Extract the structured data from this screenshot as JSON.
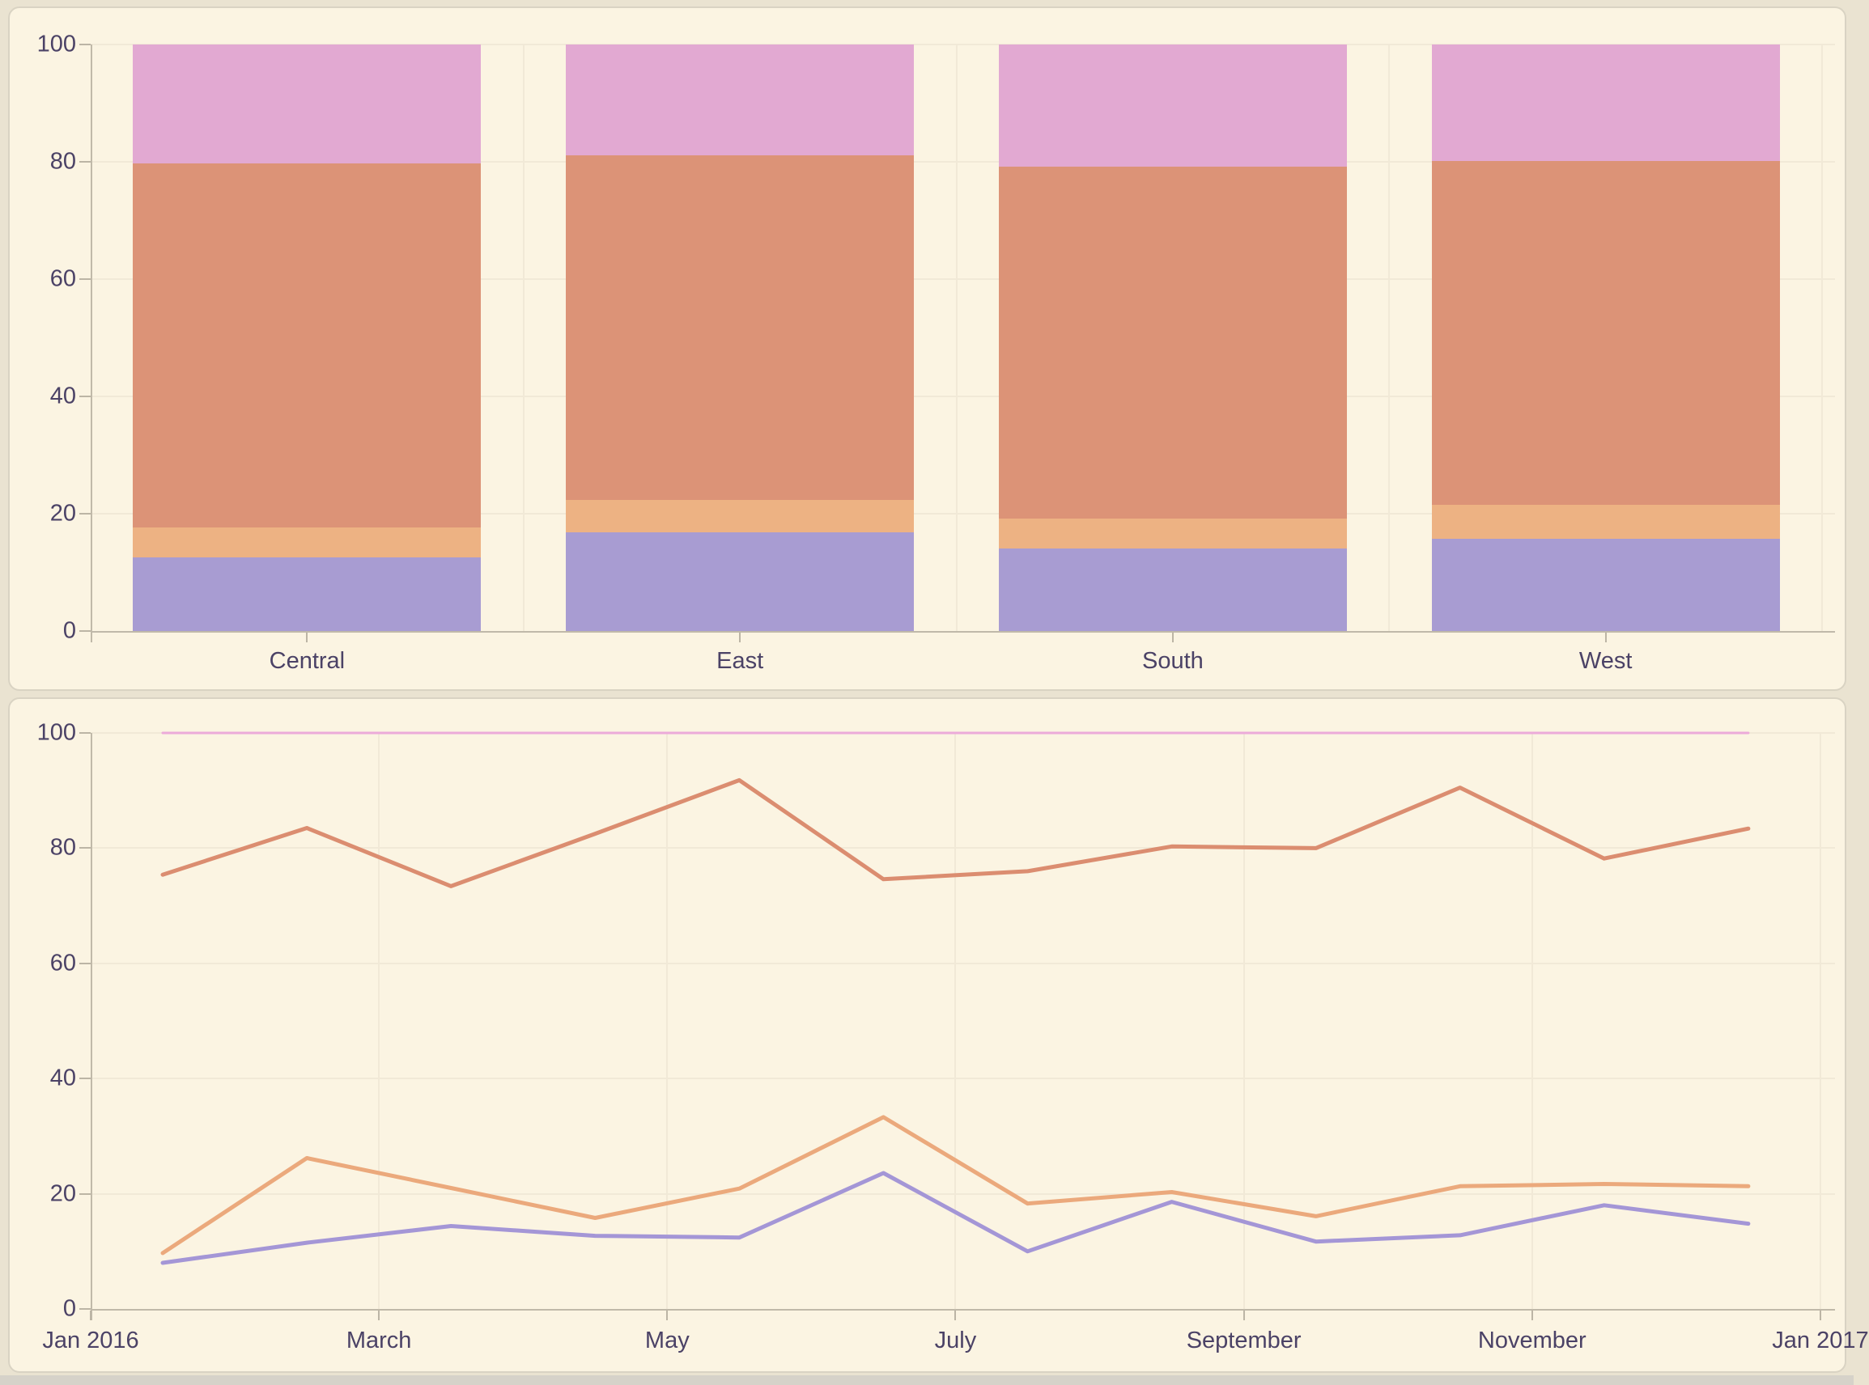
{
  "page": {
    "background": "#eae3d1",
    "panel_background": "#fbf4e2",
    "panel_border": "#d9d3c3",
    "gridline_color": "#f1e9d7",
    "axis_line_color": "#c0b9a9",
    "text_color": "#4b4266",
    "bottom_strip_color": "#d6d2c9"
  },
  "chart_data": [
    {
      "type": "bar",
      "subtype": "stacked-percent",
      "title": "",
      "categories": [
        "Central",
        "East",
        "South",
        "West"
      ],
      "series": [
        {
          "name": "purple-segment",
          "color": "#a89cd2",
          "values": [
            12.6,
            16.8,
            14.1,
            15.7
          ]
        },
        {
          "name": "orange-segment",
          "color": "#edb283",
          "values": [
            5.1,
            5.6,
            5.1,
            5.8
          ]
        },
        {
          "name": "salmon-segment",
          "color": "#dc9377",
          "values": [
            62.0,
            58.7,
            60.0,
            58.7
          ]
        },
        {
          "name": "pink-segment",
          "color": "#e2a9d2",
          "values": [
            20.3,
            18.9,
            20.8,
            19.8
          ]
        }
      ],
      "xlabel": "",
      "ylabel": "",
      "ylim": [
        0,
        100
      ],
      "yticks": [
        "0",
        "20",
        "40",
        "60",
        "80",
        "100"
      ],
      "grid": "both",
      "legend": "none"
    },
    {
      "type": "line",
      "title": "",
      "x_axis_tick_labels": [
        "Jan 2016",
        "March",
        "May",
        "July",
        "September",
        "November",
        "Jan 2017"
      ],
      "x_points": [
        "Jan",
        "Feb",
        "Mar",
        "Apr",
        "May",
        "Jun",
        "Jul",
        "Aug",
        "Sep",
        "Oct",
        "Nov",
        "Dec"
      ],
      "series": [
        {
          "name": "pink-line",
          "color": "#ecaad9",
          "stroke_width": 3,
          "values": [
            100,
            100,
            100,
            100,
            100,
            100,
            100,
            100,
            100,
            100,
            100,
            100
          ]
        },
        {
          "name": "salmon-line",
          "color": "#db8d70",
          "stroke_width": 5,
          "values": [
            75.4,
            83.5,
            73.4,
            82.5,
            91.8,
            74.6,
            76.0,
            80.3,
            80.0,
            90.5,
            78.2,
            83.4
          ]
        },
        {
          "name": "orange-line",
          "color": "#eba97c",
          "stroke_width": 5,
          "values": [
            9.7,
            26.2,
            21.0,
            15.8,
            20.9,
            33.3,
            18.3,
            20.3,
            16.1,
            21.3,
            21.7,
            21.3
          ]
        },
        {
          "name": "purple-line",
          "color": "#a496d6",
          "stroke_width": 5,
          "values": [
            8.0,
            11.5,
            14.4,
            12.7,
            12.4,
            23.6,
            10.0,
            18.6,
            11.7,
            12.8,
            18.0,
            14.8
          ]
        }
      ],
      "xlabel": "",
      "ylabel": "",
      "ylim": [
        0,
        100
      ],
      "yticks": [
        "0",
        "20",
        "40",
        "60",
        "80",
        "100"
      ],
      "grid": "both",
      "legend": "none"
    }
  ]
}
